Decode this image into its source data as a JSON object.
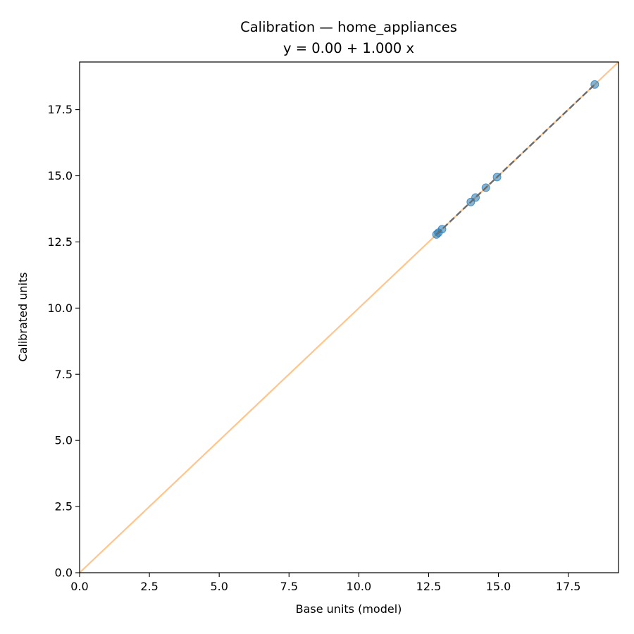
{
  "chart_data": {
    "type": "scatter",
    "title": "Calibration — home_appliances",
    "subtitle": "y = 0.00 + 1.000 x",
    "xlabel": "Base units (model)",
    "ylabel": "Calibrated units",
    "xlim": [
      0,
      19.3
    ],
    "ylim": [
      0,
      19.3
    ],
    "xticks": [
      0.0,
      2.5,
      5.0,
      7.5,
      10.0,
      12.5,
      15.0,
      17.5
    ],
    "yticks": [
      0.0,
      2.5,
      5.0,
      7.5,
      10.0,
      12.5,
      15.0,
      17.5
    ],
    "xtick_labels": [
      "0.0",
      "2.5",
      "5.0",
      "7.5",
      "10.0",
      "12.5",
      "15.0",
      "17.5"
    ],
    "ytick_labels": [
      "0.0",
      "2.5",
      "5.0",
      "7.5",
      "10.0",
      "12.5",
      "15.0",
      "17.5"
    ],
    "grid": false,
    "points": [
      {
        "x": 12.78,
        "y": 12.78
      },
      {
        "x": 12.85,
        "y": 12.85
      },
      {
        "x": 12.98,
        "y": 12.98
      },
      {
        "x": 14.01,
        "y": 14.01
      },
      {
        "x": 14.18,
        "y": 14.18
      },
      {
        "x": 14.55,
        "y": 14.55
      },
      {
        "x": 14.95,
        "y": 14.95
      },
      {
        "x": 18.45,
        "y": 18.45
      }
    ],
    "identity_line": {
      "x": [
        0,
        19.3
      ],
      "y": [
        0,
        19.3
      ]
    },
    "fit_line": {
      "intercept": 0.0,
      "slope": 1.0,
      "x": [
        12.78,
        18.45
      ]
    },
    "colors": {
      "points": "#1f77b4",
      "identity": "#ffbb78",
      "fit": "#6b6b6b"
    }
  }
}
